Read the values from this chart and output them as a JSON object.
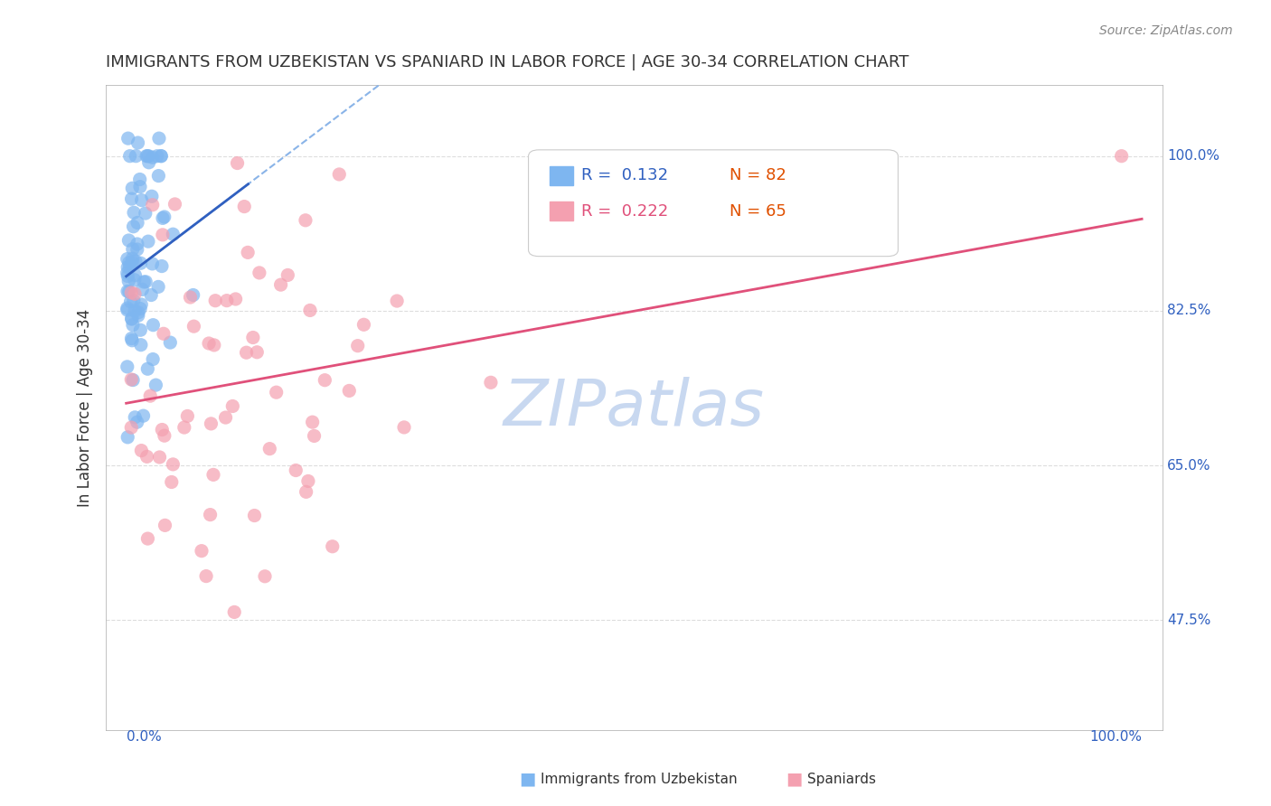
{
  "title": "IMMIGRANTS FROM UZBEKISTAN VS SPANIARD IN LABOR FORCE | AGE 30-34 CORRELATION CHART",
  "source": "Source: ZipAtlas.com",
  "ylabel": "In Labor Force | Age 30-34",
  "ytick_labels": [
    "100.0%",
    "82.5%",
    "65.0%",
    "47.5%"
  ],
  "ytick_values": [
    1.0,
    0.825,
    0.65,
    0.475
  ],
  "R_blue": 0.132,
  "N_blue": 82,
  "R_pink": 0.222,
  "N_pink": 65,
  "blue_color": "#7EB6F0",
  "pink_color": "#F4A0B0",
  "blue_line_color": "#3060C0",
  "pink_line_color": "#E0507A",
  "blue_dashed_color": "#8AB4E8",
  "watermark_color": "#C8D8F0",
  "title_color": "#333333",
  "axis_label_color": "#3060C0",
  "source_color": "#888888",
  "background_color": "#FFFFFF",
  "gridline_color": "#DDDDDD"
}
